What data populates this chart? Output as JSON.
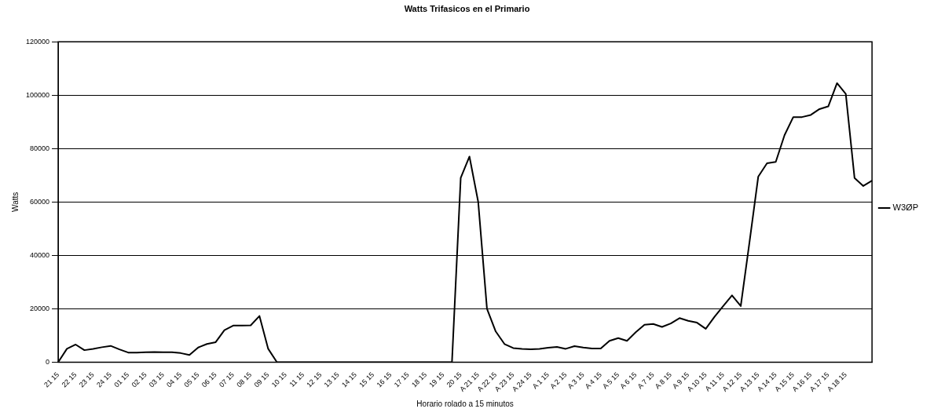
{
  "chart_data": {
    "type": "line",
    "title": "Watts Trifasicos en el Primario",
    "xlabel": "Horario rolado a 15 minutos",
    "ylabel": "Watts",
    "categories": [
      "21 15",
      null,
      "22 15",
      null,
      "23 15",
      null,
      "24 15",
      null,
      "01 15",
      null,
      "02 15",
      null,
      "03 15",
      null,
      "04 15",
      null,
      "05 15",
      null,
      "06 15",
      null,
      "07 15",
      null,
      "08 15",
      null,
      "09 15",
      null,
      "10 15",
      null,
      "11 15",
      null,
      "12 15",
      null,
      "13 15",
      null,
      "14 15",
      null,
      "15 15",
      null,
      "16 15",
      null,
      "17 15",
      null,
      "18 15",
      null,
      "19 15",
      null,
      "20 15",
      null,
      "A 21 15",
      null,
      "A 22 15",
      null,
      "A 23 15",
      null,
      "A 24 15",
      null,
      "A 1 15",
      null,
      "A 2 15",
      null,
      "A 3 15",
      null,
      "A 4 15",
      null,
      "A 5 15",
      null,
      "A 6 15",
      null,
      "A 7 15",
      null,
      "A 8 15",
      null,
      "A 9 15",
      null,
      "A 10 15",
      null,
      "A 11 15",
      null,
      "A 12 15",
      null,
      "A 13 15",
      null,
      "A 14 15",
      null,
      "A 15 15",
      null,
      "A 16 15",
      null,
      "A 17 15",
      null,
      "A 18 15",
      null,
      null,
      null
    ],
    "series": [
      {
        "name": "W3ØP",
        "color": "#000000",
        "values": [
          0,
          5000,
          6600,
          4500,
          5000,
          5600,
          6100,
          4800,
          3600,
          3600,
          3700,
          3800,
          3700,
          3700,
          3400,
          2700,
          5500,
          6800,
          7500,
          12000,
          13700,
          13700,
          13800,
          17300,
          5000,
          0,
          0,
          0,
          0,
          0,
          0,
          0,
          0,
          0,
          0,
          0,
          0,
          0,
          0,
          0,
          0,
          0,
          0,
          0,
          0,
          0,
          69000,
          77000,
          60000,
          20000,
          11500,
          6800,
          5300,
          5000,
          4800,
          5000,
          5400,
          5700,
          5000,
          6000,
          5500,
          5100,
          5100,
          8000,
          9000,
          8000,
          11200,
          14000,
          14300,
          13200,
          14500,
          16500,
          15500,
          14800,
          12500,
          17000,
          21000,
          25000,
          21000,
          45000,
          69500,
          74500,
          75000,
          85000,
          91800,
          91800,
          92600,
          94800,
          95800,
          104500,
          100500,
          69000,
          66000,
          68000
        ]
      }
    ],
    "ylim": [
      0,
      120000
    ],
    "yticks": [
      0,
      20000,
      40000,
      60000,
      80000,
      100000,
      120000
    ],
    "grid": "y",
    "legend": "right",
    "marker": "none",
    "line_style": "solid"
  }
}
